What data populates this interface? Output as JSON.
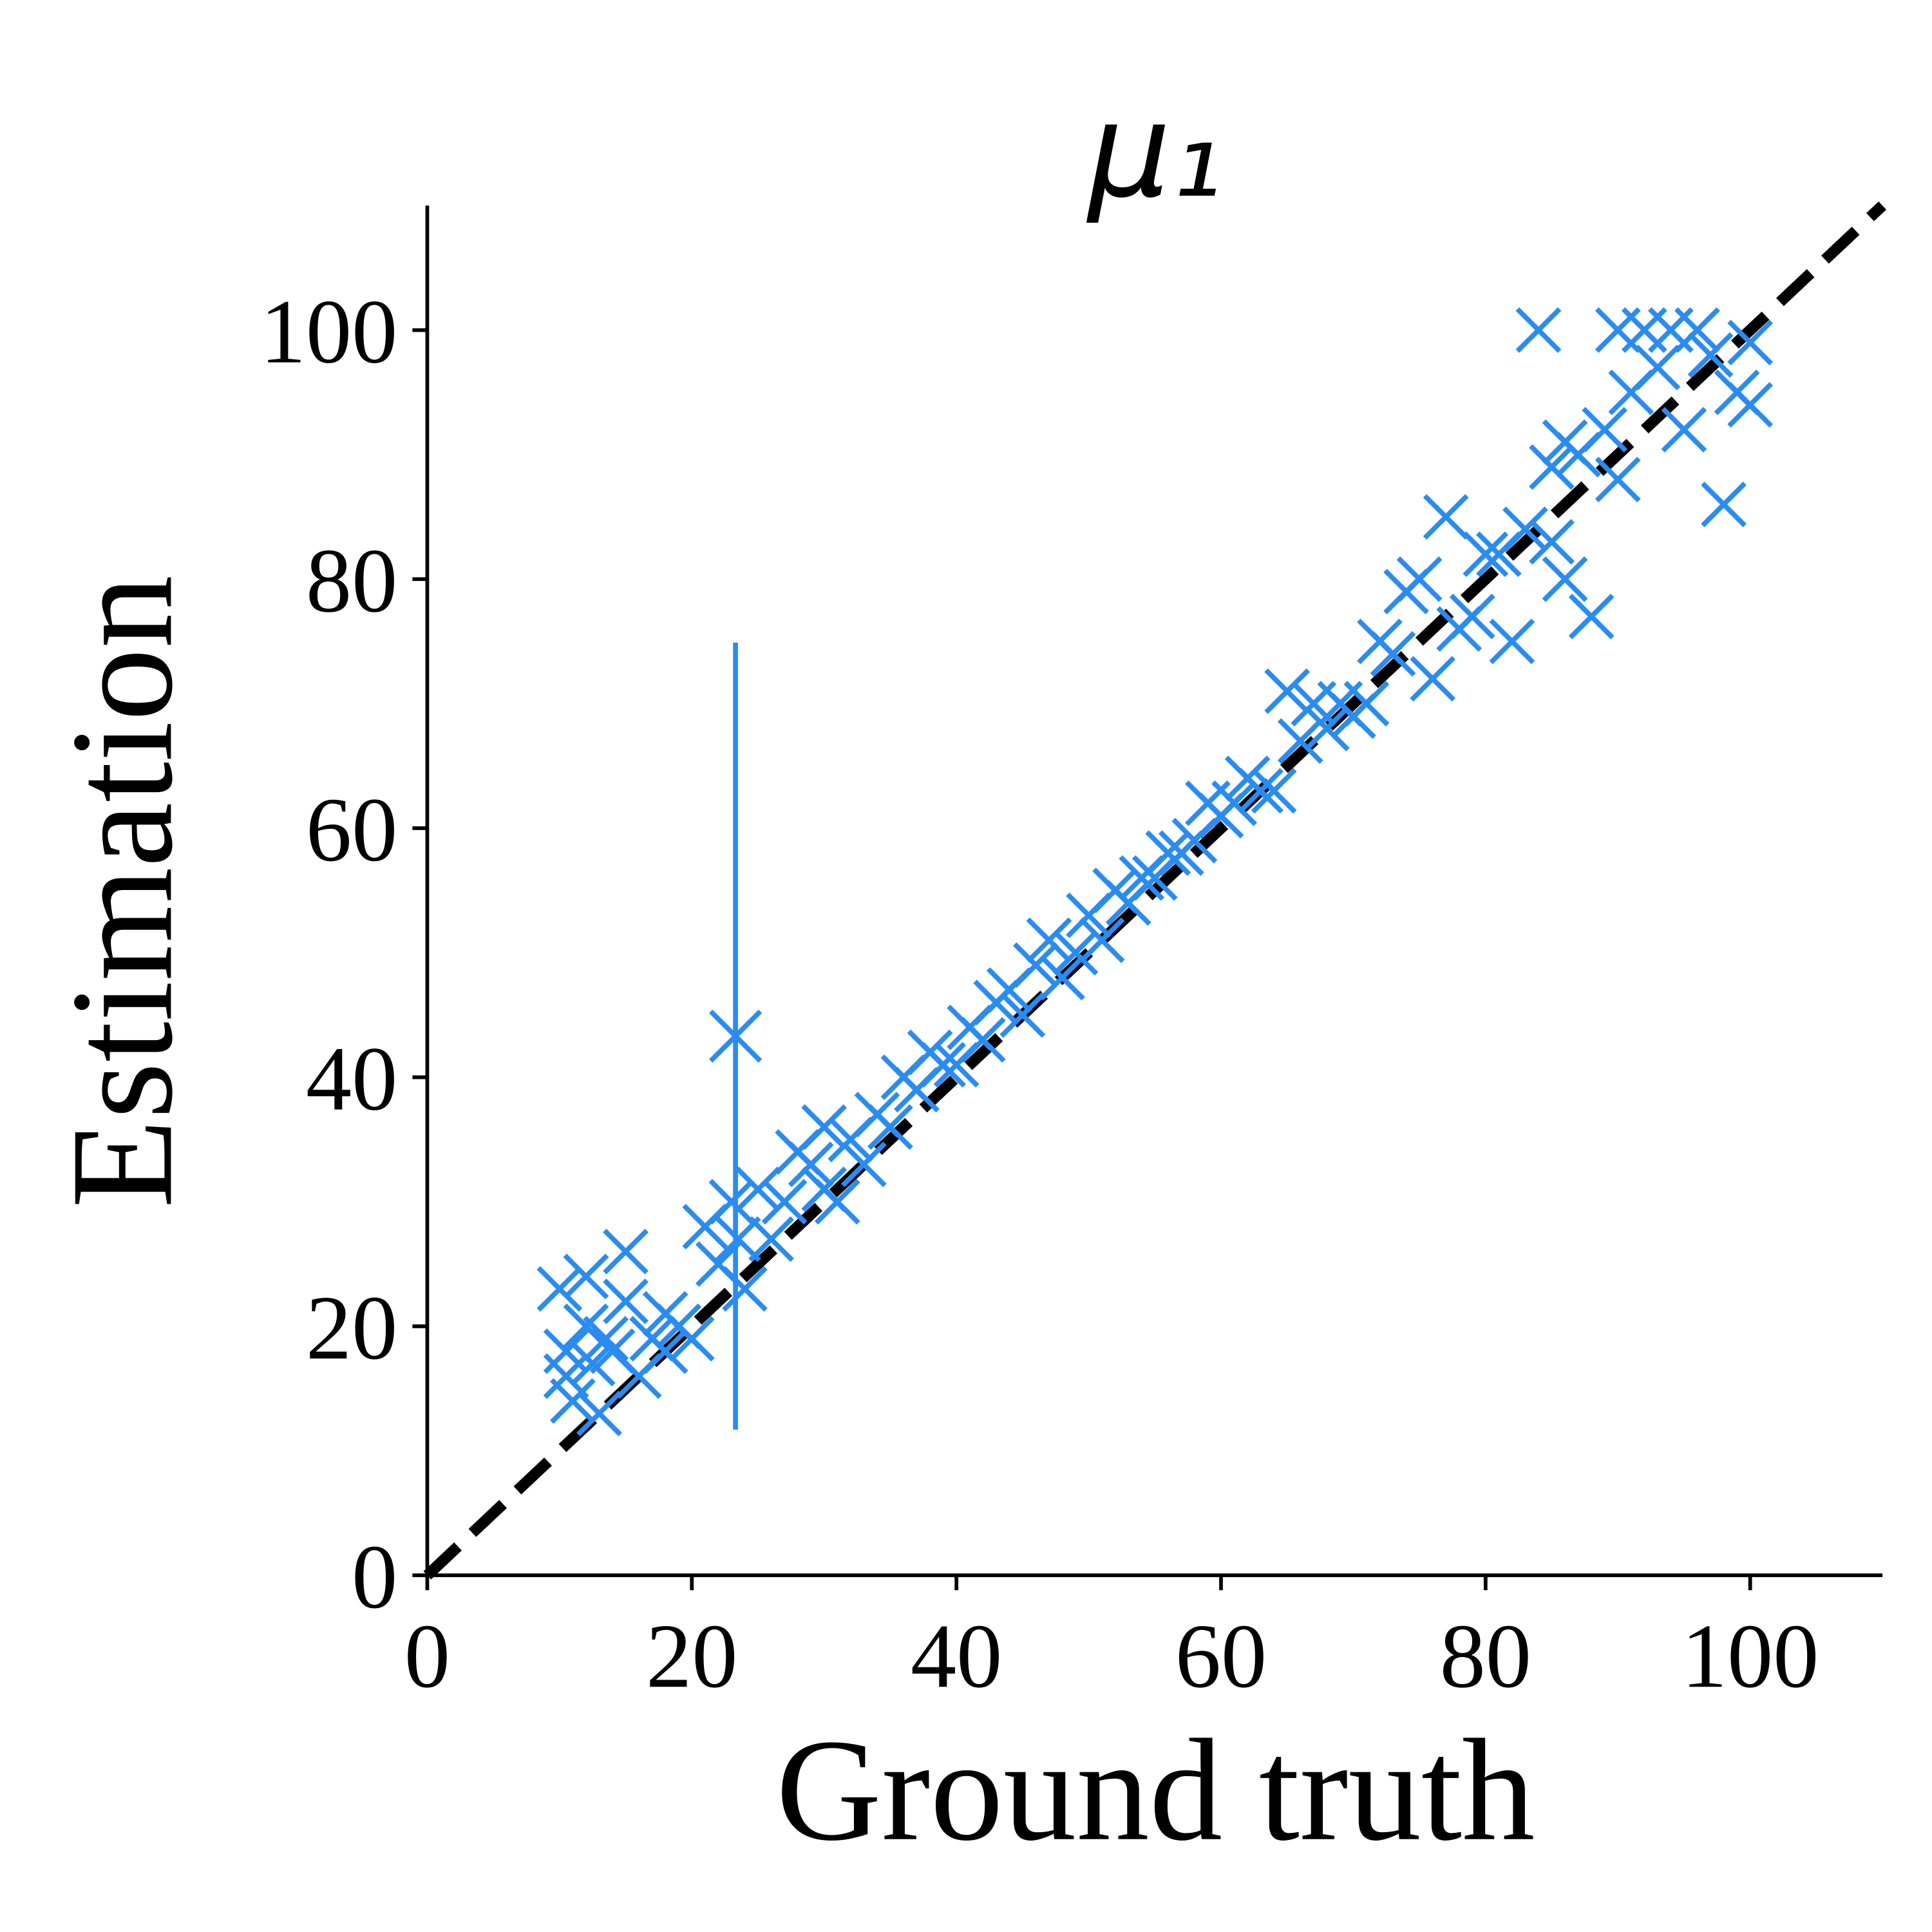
{
  "chart_data": {
    "type": "scatter",
    "title": "μ₁",
    "xlabel": "Ground truth",
    "ylabel": "Estimation",
    "xlim": [
      0,
      110
    ],
    "ylim": [
      0,
      110
    ],
    "xticks": [
      0,
      20,
      40,
      60,
      80,
      100
    ],
    "yticks": [
      0,
      20,
      40,
      60,
      80,
      100
    ],
    "identity_line": true,
    "marker": "x",
    "series": [
      {
        "color": "#2a8cf0",
        "x": [
          10,
          10.5,
          10.5,
          11,
          12,
          12,
          12.5,
          13,
          13.5,
          14,
          15,
          15,
          16,
          17,
          18,
          18,
          19,
          20,
          21,
          22,
          23,
          23.5,
          24,
          25,
          26,
          27,
          28,
          29,
          30,
          30,
          31,
          32,
          33,
          34,
          35,
          36,
          37,
          38,
          39,
          40,
          41,
          42,
          43,
          44,
          45,
          46,
          47,
          48,
          49,
          50,
          51,
          52,
          53,
          54,
          55,
          56,
          57,
          58,
          59,
          60,
          61,
          62,
          63,
          64,
          65,
          66,
          67,
          68,
          69,
          70,
          71,
          72,
          73,
          74,
          75,
          76,
          77,
          78,
          79,
          80,
          81,
          82,
          83,
          84,
          85,
          86,
          87,
          88,
          89,
          90,
          90,
          91,
          92,
          93,
          94,
          95,
          96,
          97,
          98,
          99,
          100,
          100,
          85,
          86
        ],
        "y": [
          23,
          18,
          16,
          14,
          24,
          20,
          17,
          13,
          19,
          18,
          26,
          22,
          16,
          19,
          21,
          18,
          20,
          19,
          28,
          25,
          30,
          27,
          23,
          31,
          27,
          30,
          34,
          33,
          36,
          31,
          30,
          35,
          33,
          37,
          36,
          40,
          39,
          42,
          41,
          41,
          44,
          43,
          46,
          47,
          45,
          49,
          51,
          48,
          50,
          53,
          51,
          55,
          54,
          56,
          56,
          58,
          58,
          59,
          62,
          61,
          62,
          64,
          63,
          63,
          71,
          67,
          70,
          68,
          70,
          69,
          70,
          75,
          74,
          79,
          80,
          72,
          85,
          76,
          77,
          82,
          82,
          75,
          84,
          100,
          83,
          80,
          90,
          77,
          92,
          100,
          88,
          95,
          100,
          97,
          100,
          92,
          100,
          98,
          86,
          95,
          94,
          99,
          89,
          91
        ]
      }
    ],
    "errorbar": {
      "x": 23.3,
      "y": 43.3,
      "error": 31.6
    }
  }
}
